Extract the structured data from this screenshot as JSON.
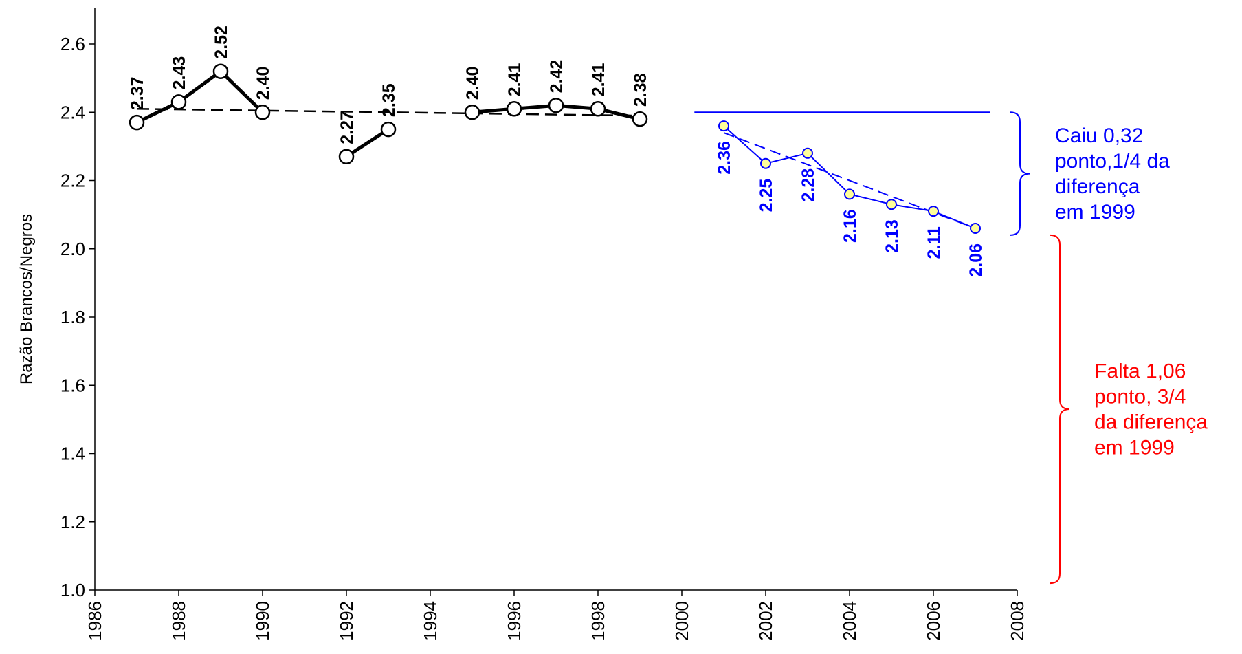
{
  "chart_data": {
    "type": "line",
    "title": "",
    "xlabel": "",
    "ylabel": "Razão Brancos/Negros",
    "xlim": [
      1986,
      2008
    ],
    "ylim": [
      1.0,
      2.6
    ],
    "x_ticks": [
      "1986",
      "1988",
      "1990",
      "1992",
      "1994",
      "1996",
      "1998",
      "2000",
      "2002",
      "2004",
      "2006",
      "2008"
    ],
    "y_ticks": [
      "1.0",
      "1.2",
      "1.4",
      "1.6",
      "1.8",
      "2.0",
      "2.2",
      "2.4",
      "2.6"
    ],
    "grid": false,
    "legend": "none",
    "series": [
      {
        "color": "#000000",
        "segments": [
          [
            {
              "x": 1987,
              "y": 2.37,
              "label": "2.37"
            },
            {
              "x": 1988,
              "y": 2.43,
              "label": "2.43"
            },
            {
              "x": 1989,
              "y": 2.52,
              "label": "2.52"
            },
            {
              "x": 1990,
              "y": 2.4,
              "label": "2.40"
            }
          ],
          [
            {
              "x": 1992,
              "y": 2.27,
              "label": "2.27"
            },
            {
              "x": 1993,
              "y": 2.35,
              "label": "2.35"
            }
          ],
          [
            {
              "x": 1995,
              "y": 2.4,
              "label": "2.40"
            },
            {
              "x": 1996,
              "y": 2.41,
              "label": "2.41"
            },
            {
              "x": 1997,
              "y": 2.42,
              "label": "2.42"
            },
            {
              "x": 1998,
              "y": 2.41,
              "label": "2.41"
            },
            {
              "x": 1999,
              "y": 2.38,
              "label": "2.38"
            }
          ]
        ],
        "trend": {
          "x": [
            1987,
            1999
          ],
          "y": [
            2.41,
            2.39
          ]
        }
      },
      {
        "color": "#0000ff",
        "marker_fill": "#ffff99",
        "segments": [
          [
            {
              "x": 2001,
              "y": 2.36,
              "label": "2.36"
            },
            {
              "x": 2002,
              "y": 2.25,
              "label": "2.25"
            },
            {
              "x": 2003,
              "y": 2.28,
              "label": "2.28"
            },
            {
              "x": 2004,
              "y": 2.16,
              "label": "2.16"
            },
            {
              "x": 2005,
              "y": 2.13,
              "label": "2.13"
            },
            {
              "x": 2006,
              "y": 2.11,
              "label": "2.11"
            },
            {
              "x": 2007,
              "y": 2.06,
              "label": "2.06"
            }
          ]
        ],
        "trend": {
          "x": [
            2001,
            2007
          ],
          "y": [
            2.34,
            2.06
          ]
        }
      }
    ],
    "annotations": [
      {
        "lines": [
          "Caiu 0,32",
          "ponto,1/4 da",
          "diferença",
          "em 1999"
        ],
        "color": "#0000ff",
        "range": [
          2.04,
          2.4
        ]
      },
      {
        "lines": [
          "Falta 1,06",
          "ponto, 3/4",
          "da diferença",
          "em 1999"
        ],
        "color": "#ff0000",
        "range": [
          1.02,
          2.04
        ]
      }
    ],
    "reference_line": {
      "y": 2.4,
      "x_from": 2000.3,
      "color": "#0000ff"
    }
  }
}
